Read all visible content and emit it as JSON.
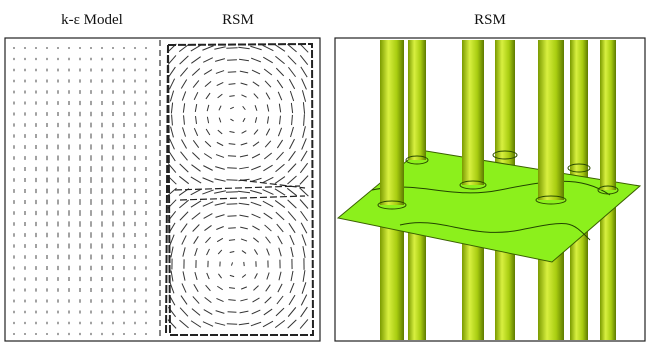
{
  "panels": [
    {
      "labels": [
        "k-ε Model",
        "RSM"
      ]
    },
    {
      "label": "RSM"
    }
  ]
}
